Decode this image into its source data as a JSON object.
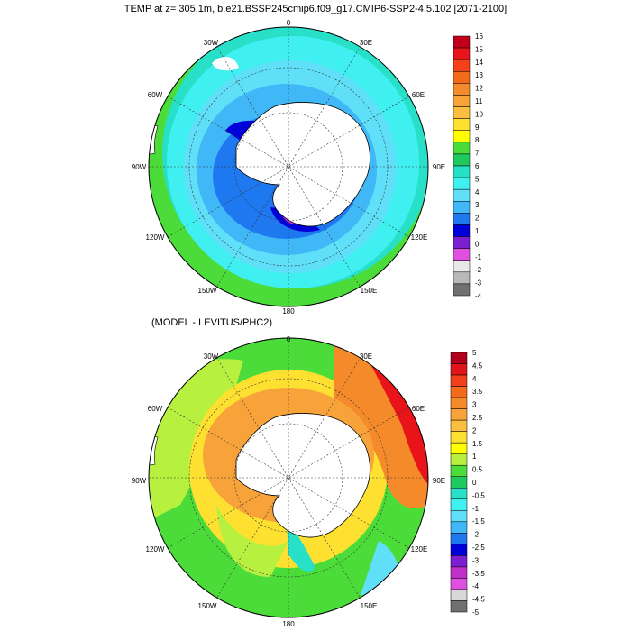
{
  "figure_title": "TEMP at z= 305.1m, b.e21.BSSP245cmip6.f09_g17.CMIP6-SSP2-4.5.102 [2071-2100]",
  "panels": [
    {
      "id": "model",
      "title": "",
      "longitude_labels": {
        "top": "0",
        "top_left": "30W",
        "top_right": "30E",
        "upper_left": "60W",
        "upper_right": "60E",
        "left": "90W",
        "right": "90E",
        "lower_left": "120W",
        "lower_right": "120E",
        "bottom_left": "150W",
        "bottom_right": "150E",
        "bottom": "180"
      },
      "colorbar_labels": [
        "16",
        "15",
        "14",
        "13",
        "12",
        "11",
        "10",
        "9",
        "8",
        "7",
        "6",
        "5",
        "4",
        "3",
        "2",
        "1",
        "0",
        "-1",
        "-2",
        "-3",
        "-4"
      ],
      "colorbar_colors": [
        "#c0001a",
        "#e8141a",
        "#f5401a",
        "#f26a1a",
        "#f58a2a",
        "#f8a23a",
        "#fbbf40",
        "#fde030",
        "#ffff00",
        "#b8f040",
        "#4cdc3a",
        "#20c860",
        "#28e0c8",
        "#40f0f0",
        "#60e0f8",
        "#40b8f8",
        "#1e78f0",
        "#0000d8",
        "#7a20d0",
        "#c030c8",
        "#e050e0",
        "#e8e8e8",
        "#b8b8b8",
        "#707070"
      ],
      "colorbar_swatches_top_down": [
        "#c0001a",
        "#e8141a",
        "#f5401a",
        "#f26a1a",
        "#f58a2a",
        "#f8a23a",
        "#fbbf40",
        "#fde030",
        "#ffff00",
        "#4cdc3a",
        "#20c860",
        "#28e0c8",
        "#40f0f0",
        "#60e0f8",
        "#40b8f8",
        "#1e78f0",
        "#0000d8",
        "#7a20d0",
        "#e050e0",
        "#e8e8e8",
        "#b8b8b8",
        "#707070"
      ]
    },
    {
      "id": "difference",
      "title": "(MODEL - LEVITUS/PHC2)",
      "longitude_labels": {
        "top": "0",
        "top_left": "30W",
        "top_right": "30E",
        "upper_left": "60W",
        "upper_right": "60E",
        "left": "90W",
        "right": "90E",
        "lower_left": "120W",
        "lower_right": "120E",
        "bottom_left": "150W",
        "bottom_right": "150E",
        "bottom": "180"
      },
      "colorbar_labels": [
        "5",
        "4.5",
        "4",
        "3.5",
        "3",
        "2.5",
        "2",
        "1.5",
        "1",
        "0.5",
        "0",
        "-0.5",
        "-1",
        "-1.5",
        "-2",
        "-2.5",
        "-3",
        "-3.5",
        "-4",
        "-4.5",
        "-5"
      ],
      "colorbar_swatches_top_down": [
        "#b0001a",
        "#e0141a",
        "#f2401a",
        "#f26a1a",
        "#f58a2a",
        "#f8a23a",
        "#fbbf40",
        "#fde030",
        "#ffff00",
        "#b8f040",
        "#4cdc3a",
        "#20c860",
        "#28e0c8",
        "#40f0f0",
        "#60e0f8",
        "#40b8f8",
        "#1e78f0",
        "#0000d8",
        "#7a20d0",
        "#c030c8",
        "#e050e0",
        "#d8d8d8",
        "#707070"
      ]
    }
  ],
  "colors": {
    "land": "#ffffff",
    "model_fill_outer": "#40b8f8",
    "model_fill_inner": "#1e78f0",
    "model_fill_north": "#4cdc3a",
    "diff_fill_outer": "#fde030",
    "diff_fill_inner": "#f8a23a",
    "diff_fill_ne": "#e8141a"
  }
}
